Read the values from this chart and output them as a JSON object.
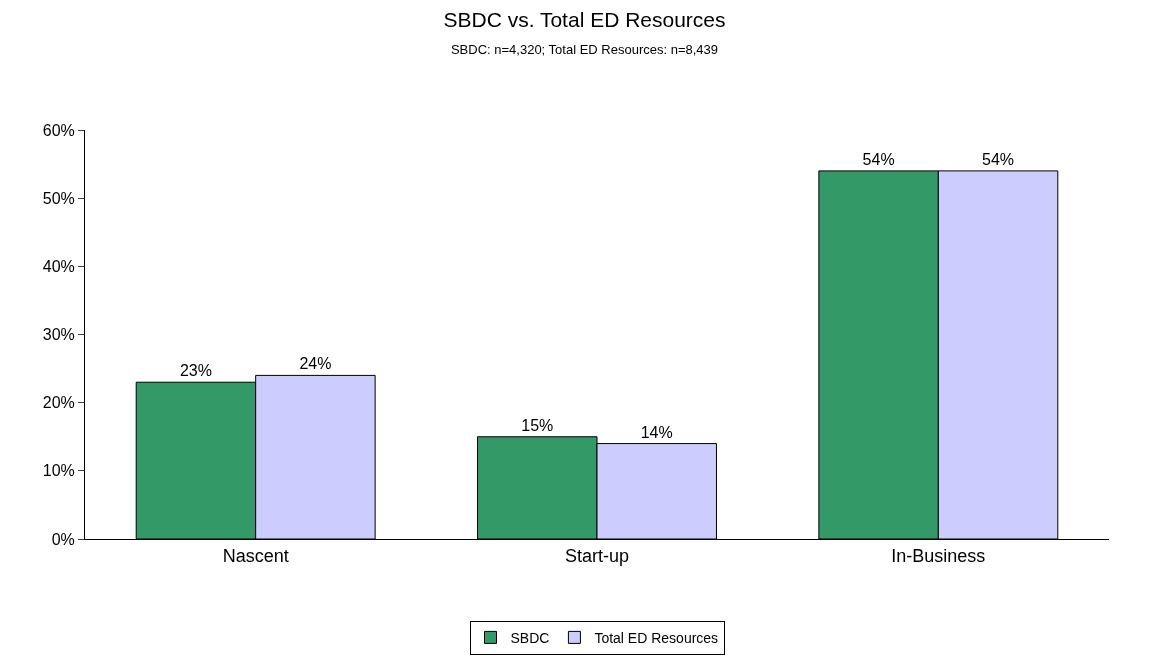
{
  "chart_data": {
    "type": "bar",
    "title": "SBDC vs. Total ED Resources",
    "subtitle": "SBDC: n=4,320; Total ED Resources: n=8,439",
    "categories": [
      "Nascent",
      "Start-up",
      "In-Business"
    ],
    "series": [
      {
        "name": "SBDC",
        "color": "#339966",
        "values": [
          23,
          15,
          54
        ],
        "value_labels": [
          "23%",
          "15%",
          "54%"
        ]
      },
      {
        "name": "Total ED Resources",
        "color": "#ccccff",
        "values": [
          24,
          14,
          54
        ],
        "value_labels": [
          "24%",
          "14%",
          "54%"
        ]
      }
    ],
    "ylim": [
      0,
      60
    ],
    "yticks": [
      {
        "value": 0,
        "label": "0%"
      },
      {
        "value": 10,
        "label": "10%"
      },
      {
        "value": 20,
        "label": "20%"
      },
      {
        "value": 30,
        "label": "30%"
      },
      {
        "value": 40,
        "label": "40%"
      },
      {
        "value": 50,
        "label": "50%"
      },
      {
        "value": 60,
        "label": "60%"
      }
    ],
    "legend": "bottom"
  }
}
